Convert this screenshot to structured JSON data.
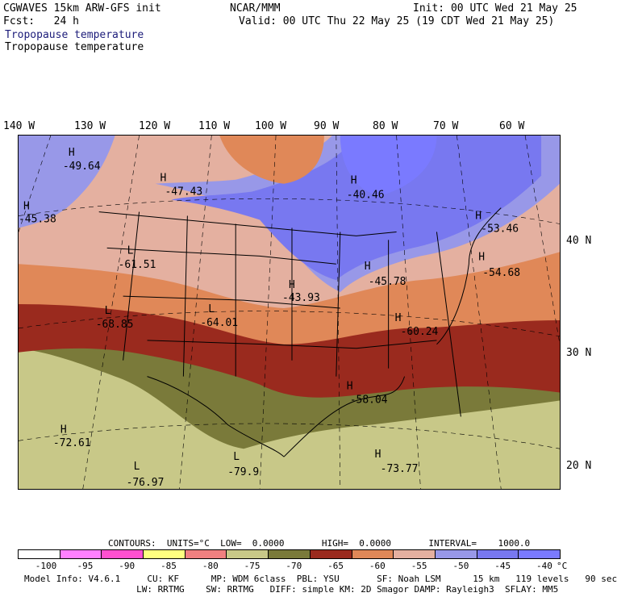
{
  "header": {
    "model_line": "CGWAVES 15km ARW-GFS init",
    "fcst_line": "Fcst:   24 h",
    "agency": "NCAR/MMM",
    "init_line": "Init: 00 UTC Wed 21 May 25",
    "valid_line": "Valid: 00 UTC Thu 22 May 25 (19 CDT Wed 21 May 25)",
    "field_title_colored": "Tropopause temperature",
    "field_title": "Tropopause temperature"
  },
  "axes": {
    "lon_labels": [
      "140 W",
      "130 W",
      "120 W",
      "110 W",
      "100 W",
      "90 W",
      "80 W",
      "70 W",
      "60 W"
    ],
    "lat_labels": [
      "40 N",
      "30 N",
      "20 N"
    ]
  },
  "map": {
    "centers": [
      {
        "type": "H",
        "value": "-49.64"
      },
      {
        "type": "H",
        "value": "-47.43"
      },
      {
        "type": "H",
        "value": "-45.38"
      },
      {
        "type": "H",
        "value": "-40.46"
      },
      {
        "type": "H",
        "value": "-53.46"
      },
      {
        "type": "L",
        "value": "-61.51"
      },
      {
        "type": "L",
        "value": "-68.85"
      },
      {
        "type": "L",
        "value": "-64.01"
      },
      {
        "type": "H",
        "value": "-43.93"
      },
      {
        "type": "H",
        "value": "-45.78"
      },
      {
        "type": "H",
        "value": "-54.68"
      },
      {
        "type": "H",
        "value": "-60.24"
      },
      {
        "type": "H",
        "value": "-58.04"
      },
      {
        "type": "H",
        "value": "-72.61"
      },
      {
        "type": "L",
        "value": "-76.97"
      },
      {
        "type": "L",
        "value": "-79.9"
      },
      {
        "type": "H",
        "value": "-73.77"
      }
    ]
  },
  "contours_line": "CONTOURS:  UNITS=°C  LOW=  0.0000       HIGH=  0.0000       INTERVAL=    1000.0",
  "colorbar": {
    "colors": [
      "#ffffff",
      "#ff80ff",
      "#ff50d0",
      "#ffff80",
      "#f08080",
      "#c8c888",
      "#7a7a3a",
      "#9a2a1e",
      "#e08858",
      "#e4b0a0",
      "#9898e8",
      "#7878f0",
      "#7a7aff"
    ],
    "tick_labels": [
      "-100",
      "-95",
      "-90",
      "-85",
      "-80",
      "-75",
      "-70",
      "-65",
      "-60",
      "-55",
      "-50",
      "-45",
      "-40"
    ],
    "unit": "°C"
  },
  "footer": {
    "line1": "Model Info: V4.6.1     CU: KF      MP: WDM 6class  PBL: YSU       SF: Noah LSM      15 km   119 levels   90 sec",
    "line2": "                     LW: RRTMG    SW: RRTMG   DIFF: simple KM: 2D Smagor DAMP: Rayleigh3  SFLAY: MM5"
  }
}
